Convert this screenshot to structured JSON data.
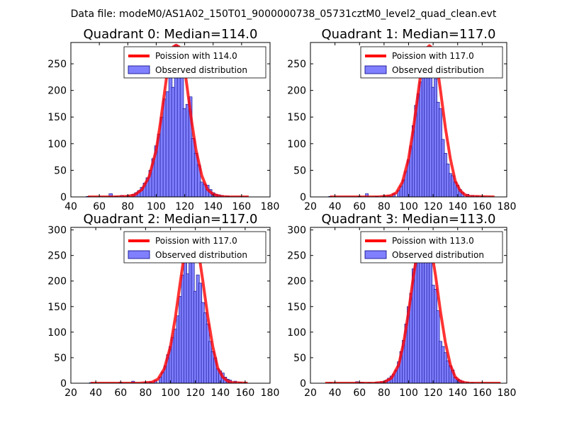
{
  "figure_title": "Data file: modeM0/AS1A02_150T01_9000000738_05731cztM0_level2_quad_clean.evt",
  "colors": {
    "bar_fill": "#8080ff",
    "bar_edge": "#000080",
    "curve": "#ff0000"
  },
  "chart_data": [
    {
      "type": "bar",
      "title": "Quadrant 0: Median=114.0",
      "xlim": [
        40,
        180
      ],
      "ylim": [
        0,
        290
      ],
      "xticks": [
        40,
        60,
        80,
        100,
        120,
        140,
        160,
        180
      ],
      "yticks": [
        0,
        50,
        100,
        150,
        200,
        250
      ],
      "legend": [
        "Poission with 114.0",
        "Observed distribution"
      ],
      "bin_width": 2.4,
      "bins": [
        [
          52,
          1
        ],
        [
          56,
          0
        ],
        [
          60,
          0
        ],
        [
          64,
          0
        ],
        [
          68,
          6
        ],
        [
          72,
          1
        ],
        [
          76,
          3
        ],
        [
          80,
          3
        ],
        [
          84,
          5
        ],
        [
          86,
          8
        ],
        [
          88,
          12
        ],
        [
          90,
          18
        ],
        [
          92,
          26
        ],
        [
          94,
          36
        ],
        [
          96,
          50
        ],
        [
          98,
          72
        ],
        [
          100,
          96
        ],
        [
          102,
          118
        ],
        [
          104,
          150
        ],
        [
          106,
          184
        ],
        [
          108,
          198
        ],
        [
          110,
          238
        ],
        [
          112,
          206
        ],
        [
          114,
          285
        ],
        [
          116,
          232
        ],
        [
          118,
          272
        ],
        [
          120,
          166
        ],
        [
          122,
          174
        ],
        [
          124,
          188
        ],
        [
          126,
          110
        ],
        [
          128,
          82
        ],
        [
          130,
          60
        ],
        [
          132,
          28
        ],
        [
          134,
          24
        ],
        [
          136,
          22
        ],
        [
          138,
          14
        ],
        [
          140,
          8
        ],
        [
          142,
          5
        ],
        [
          144,
          4
        ],
        [
          146,
          3
        ],
        [
          150,
          2
        ]
      ],
      "curve": {
        "label": "Poission with 114.0",
        "points": [
          [
            52,
            0
          ],
          [
            60,
            0
          ],
          [
            70,
            0
          ],
          [
            80,
            1
          ],
          [
            85,
            4
          ],
          [
            90,
            14
          ],
          [
            95,
            38
          ],
          [
            100,
            88
          ],
          [
            103,
            140
          ],
          [
            106,
            200
          ],
          [
            108,
            240
          ],
          [
            110,
            268
          ],
          [
            112,
            282
          ],
          [
            114,
            285
          ],
          [
            116,
            282
          ],
          [
            118,
            268
          ],
          [
            120,
            240
          ],
          [
            122,
            200
          ],
          [
            125,
            140
          ],
          [
            128,
            88
          ],
          [
            132,
            40
          ],
          [
            136,
            14
          ],
          [
            140,
            5
          ],
          [
            145,
            1
          ],
          [
            150,
            0
          ],
          [
            165,
            0
          ]
        ]
      }
    },
    {
      "type": "bar",
      "title": "Quadrant 1: Median=117.0",
      "xlim": [
        20,
        180
      ],
      "ylim": [
        0,
        290
      ],
      "xticks": [
        20,
        40,
        60,
        80,
        100,
        120,
        140,
        160,
        180
      ],
      "yticks": [
        0,
        50,
        100,
        150,
        200,
        250
      ],
      "legend": [
        "Poission with 117.0",
        "Observed distribution"
      ],
      "bin_width": 2.4,
      "bins": [
        [
          36,
          1
        ],
        [
          60,
          1
        ],
        [
          66,
          6
        ],
        [
          74,
          1
        ],
        [
          80,
          2
        ],
        [
          84,
          3
        ],
        [
          88,
          6
        ],
        [
          92,
          12
        ],
        [
          94,
          20
        ],
        [
          96,
          32
        ],
        [
          98,
          48
        ],
        [
          100,
          70
        ],
        [
          102,
          96
        ],
        [
          104,
          134
        ],
        [
          106,
          172
        ],
        [
          108,
          194
        ],
        [
          110,
          216
        ],
        [
          112,
          234
        ],
        [
          114,
          256
        ],
        [
          116,
          262
        ],
        [
          118,
          282
        ],
        [
          120,
          206
        ],
        [
          122,
          222
        ],
        [
          124,
          178
        ],
        [
          126,
          166
        ],
        [
          128,
          108
        ],
        [
          130,
          82
        ],
        [
          132,
          62
        ],
        [
          134,
          44
        ],
        [
          136,
          40
        ],
        [
          138,
          28
        ],
        [
          140,
          22
        ],
        [
          142,
          14
        ],
        [
          144,
          8
        ],
        [
          148,
          5
        ],
        [
          152,
          3
        ],
        [
          156,
          2
        ],
        [
          160,
          1
        ]
      ],
      "curve": {
        "label": "Poission with 117.0",
        "points": [
          [
            36,
            0
          ],
          [
            60,
            0
          ],
          [
            75,
            0
          ],
          [
            85,
            2
          ],
          [
            90,
            8
          ],
          [
            95,
            28
          ],
          [
            100,
            72
          ],
          [
            104,
            130
          ],
          [
            108,
            200
          ],
          [
            111,
            250
          ],
          [
            114,
            278
          ],
          [
            117,
            284
          ],
          [
            120,
            278
          ],
          [
            123,
            250
          ],
          [
            126,
            200
          ],
          [
            130,
            130
          ],
          [
            134,
            72
          ],
          [
            138,
            30
          ],
          [
            142,
            12
          ],
          [
            146,
            4
          ],
          [
            150,
            1
          ],
          [
            170,
            0
          ]
        ]
      }
    },
    {
      "type": "bar",
      "title": "Quadrant 2: Median=117.0",
      "xlim": [
        20,
        180
      ],
      "ylim": [
        0,
        305
      ],
      "xticks": [
        20,
        40,
        60,
        80,
        100,
        120,
        140,
        160,
        180
      ],
      "yticks": [
        0,
        50,
        100,
        150,
        200,
        250,
        300
      ],
      "legend": [
        "Poission with 117.0",
        "Observed distribution"
      ],
      "bin_width": 2.4,
      "bins": [
        [
          36,
          1
        ],
        [
          60,
          2
        ],
        [
          70,
          4
        ],
        [
          80,
          2
        ],
        [
          84,
          3
        ],
        [
          88,
          5
        ],
        [
          92,
          12
        ],
        [
          94,
          22
        ],
        [
          96,
          34
        ],
        [
          98,
          56
        ],
        [
          100,
          72
        ],
        [
          102,
          90
        ],
        [
          104,
          106
        ],
        [
          106,
          132
        ],
        [
          108,
          170
        ],
        [
          110,
          212
        ],
        [
          112,
          256
        ],
        [
          114,
          214
        ],
        [
          116,
          264
        ],
        [
          118,
          290
        ],
        [
          120,
          180
        ],
        [
          122,
          212
        ],
        [
          124,
          196
        ],
        [
          126,
          158
        ],
        [
          128,
          138
        ],
        [
          130,
          116
        ],
        [
          132,
          82
        ],
        [
          134,
          62
        ],
        [
          136,
          50
        ],
        [
          138,
          28
        ],
        [
          140,
          24
        ],
        [
          142,
          20
        ],
        [
          144,
          12
        ],
        [
          146,
          8
        ],
        [
          148,
          6
        ],
        [
          152,
          4
        ],
        [
          156,
          2
        ],
        [
          160,
          1
        ]
      ],
      "curve": {
        "label": "Poission with 117.0",
        "points": [
          [
            36,
            0
          ],
          [
            60,
            0
          ],
          [
            75,
            0
          ],
          [
            85,
            2
          ],
          [
            90,
            8
          ],
          [
            95,
            28
          ],
          [
            100,
            72
          ],
          [
            104,
            130
          ],
          [
            108,
            200
          ],
          [
            111,
            250
          ],
          [
            114,
            280
          ],
          [
            117,
            290
          ],
          [
            120,
            280
          ],
          [
            123,
            250
          ],
          [
            126,
            200
          ],
          [
            130,
            130
          ],
          [
            134,
            72
          ],
          [
            138,
            30
          ],
          [
            142,
            12
          ],
          [
            146,
            4
          ],
          [
            150,
            1
          ],
          [
            162,
            0
          ]
        ]
      }
    },
    {
      "type": "bar",
      "title": "Quadrant 3: Median=113.0",
      "xlim": [
        20,
        180
      ],
      "ylim": [
        0,
        305
      ],
      "xticks": [
        20,
        40,
        60,
        80,
        100,
        120,
        140,
        160,
        180
      ],
      "yticks": [
        0,
        50,
        100,
        150,
        200,
        250,
        300
      ],
      "legend": [
        "Poission with 113.0",
        "Observed distribution"
      ],
      "bin_width": 2.4,
      "bins": [
        [
          36,
          1
        ],
        [
          58,
          3
        ],
        [
          62,
          2
        ],
        [
          68,
          1
        ],
        [
          74,
          2
        ],
        [
          78,
          3
        ],
        [
          82,
          6
        ],
        [
          84,
          10
        ],
        [
          86,
          14
        ],
        [
          88,
          18
        ],
        [
          90,
          26
        ],
        [
          92,
          42
        ],
        [
          94,
          62
        ],
        [
          96,
          84
        ],
        [
          98,
          116
        ],
        [
          100,
          150
        ],
        [
          102,
          176
        ],
        [
          104,
          224
        ],
        [
          106,
          246
        ],
        [
          108,
          252
        ],
        [
          110,
          268
        ],
        [
          112,
          274
        ],
        [
          114,
          256
        ],
        [
          116,
          252
        ],
        [
          118,
          240
        ],
        [
          120,
          192
        ],
        [
          122,
          184
        ],
        [
          124,
          142
        ],
        [
          126,
          82
        ],
        [
          128,
          72
        ],
        [
          130,
          60
        ],
        [
          132,
          44
        ],
        [
          134,
          34
        ],
        [
          136,
          26
        ],
        [
          138,
          12
        ],
        [
          140,
          8
        ],
        [
          142,
          6
        ],
        [
          144,
          4
        ],
        [
          148,
          2
        ],
        [
          152,
          1
        ]
      ],
      "curve": {
        "label": "Poission with 113.0",
        "points": [
          [
            32,
            0
          ],
          [
            60,
            0
          ],
          [
            72,
            0
          ],
          [
            80,
            2
          ],
          [
            86,
            10
          ],
          [
            92,
            36
          ],
          [
            96,
            80
          ],
          [
            100,
            140
          ],
          [
            104,
            210
          ],
          [
            107,
            255
          ],
          [
            110,
            280
          ],
          [
            113,
            288
          ],
          [
            116,
            280
          ],
          [
            119,
            255
          ],
          [
            122,
            210
          ],
          [
            126,
            140
          ],
          [
            130,
            80
          ],
          [
            134,
            36
          ],
          [
            138,
            12
          ],
          [
            142,
            4
          ],
          [
            146,
            1
          ],
          [
            150,
            0
          ],
          [
            175,
            0
          ]
        ]
      }
    }
  ]
}
